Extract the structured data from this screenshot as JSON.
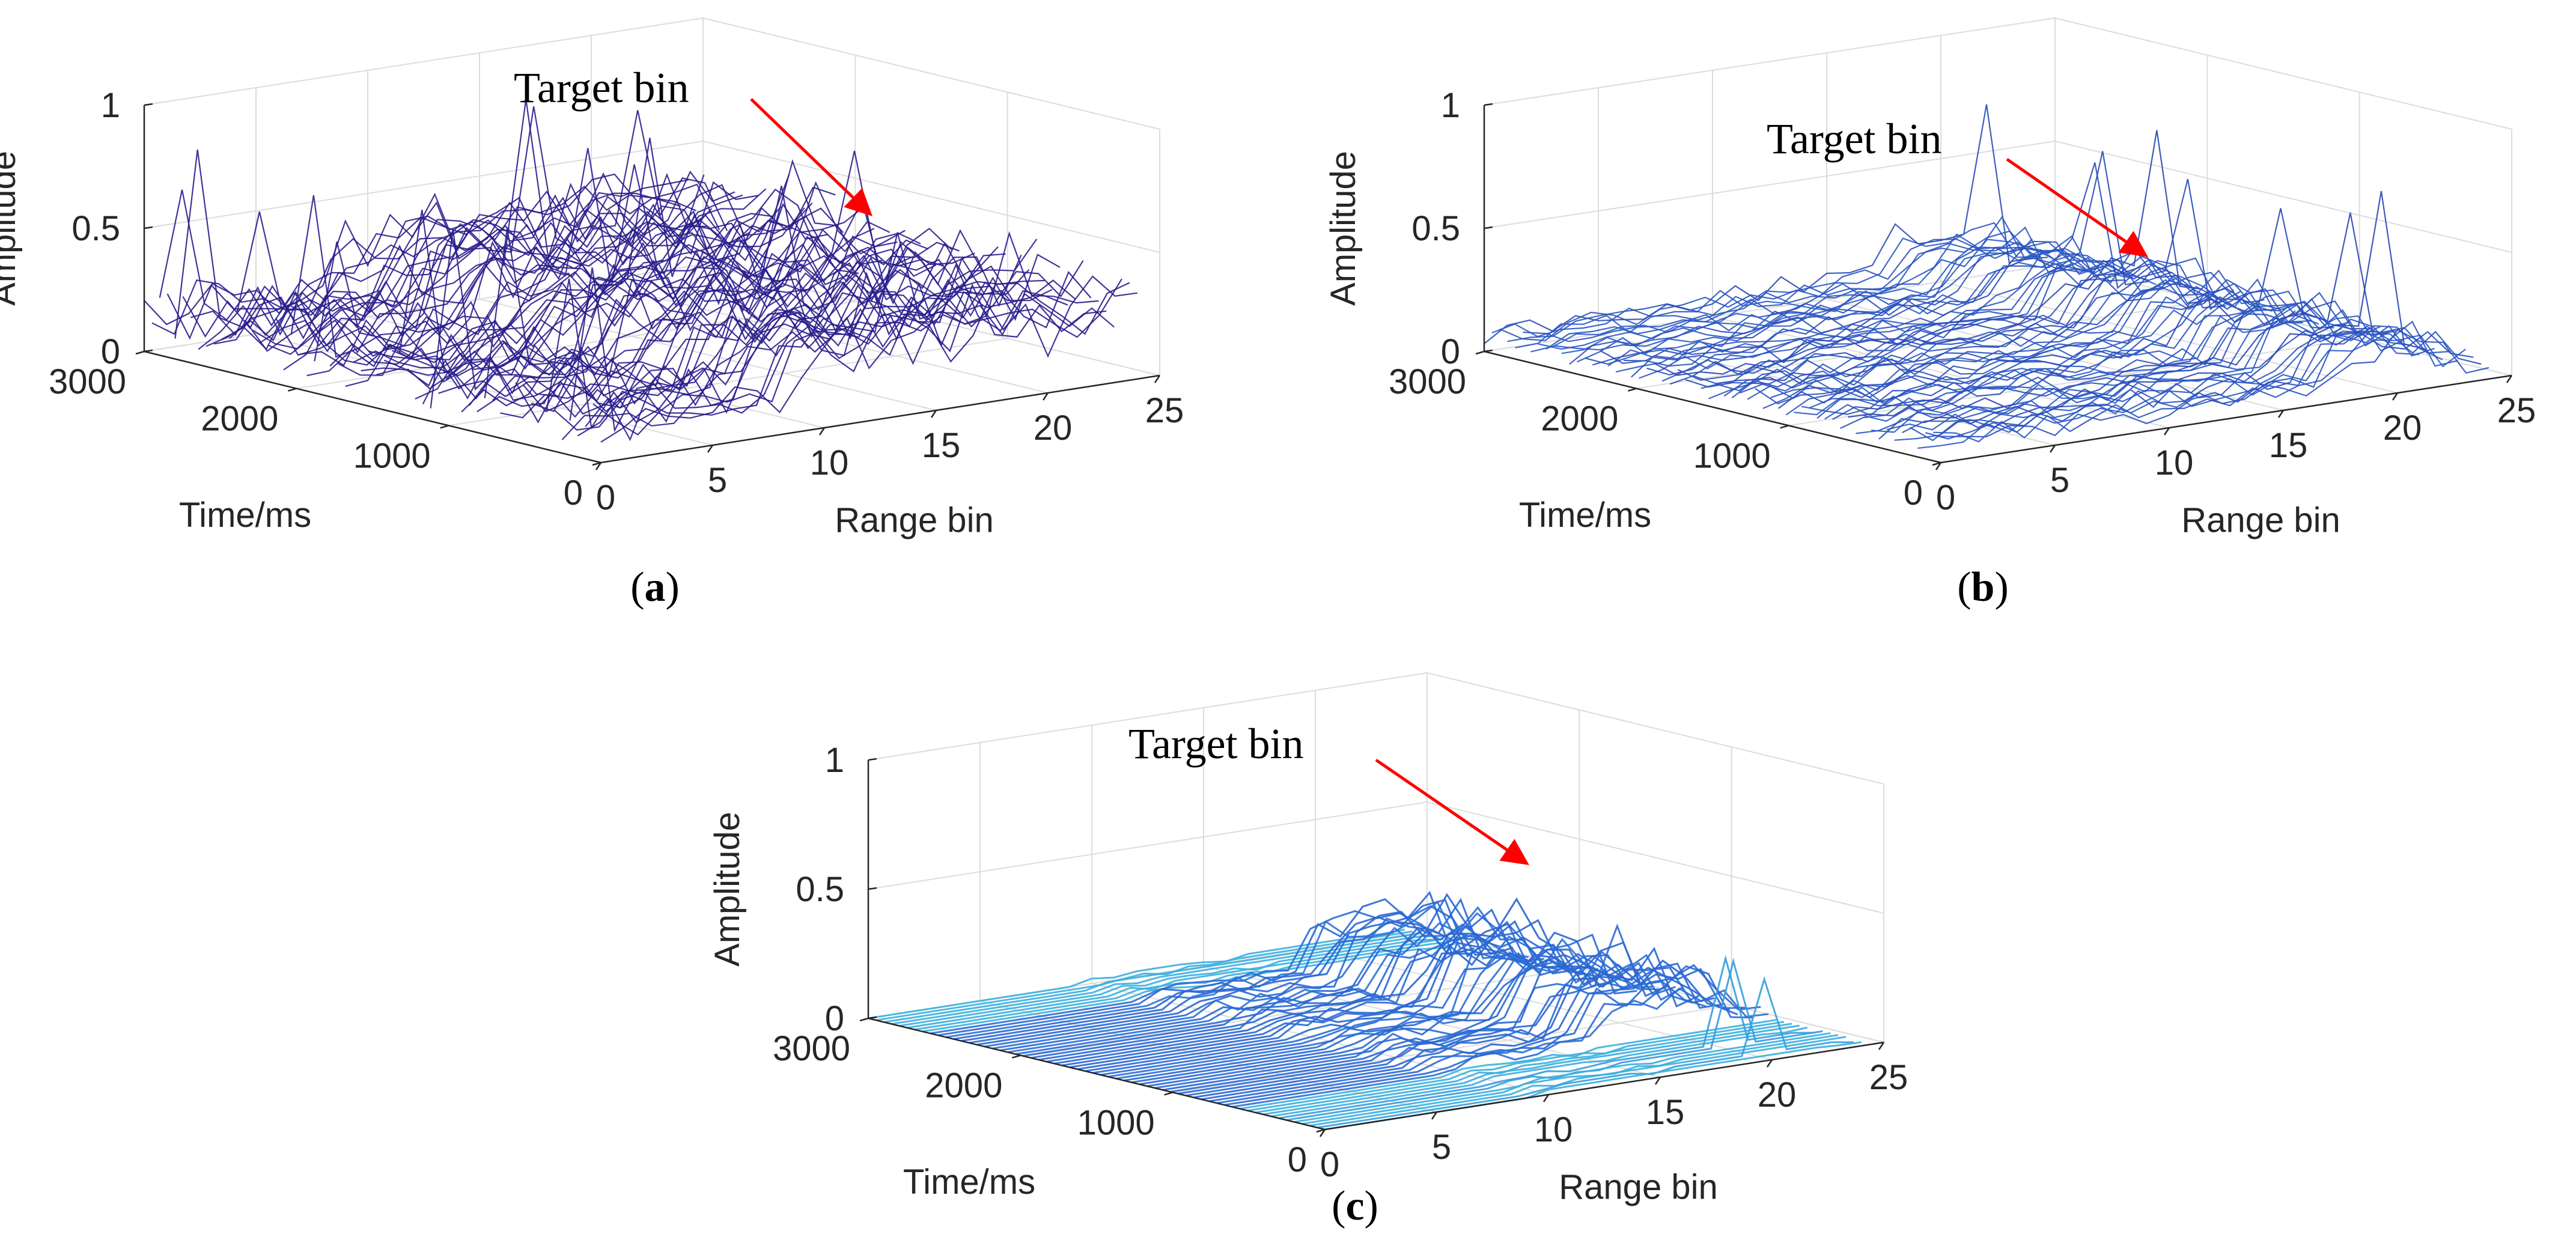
{
  "chart_data": [
    {
      "id": "a",
      "type": "3d-mesh",
      "caption_letter": "a",
      "xlabel": "Range bin",
      "ylabel": "Time/ms",
      "zlabel": "Amplitude",
      "xlim": [
        0,
        25
      ],
      "ylim": [
        0,
        3000
      ],
      "zlim": [
        0,
        1
      ],
      "xticks": [
        "0",
        "5",
        "10",
        "15",
        "20",
        "25"
      ],
      "yticks": [
        "0",
        "1000",
        "2000",
        "3000"
      ],
      "zticks": [
        "0",
        "0.5",
        "1"
      ],
      "annotation": "Target bin",
      "surface_level": "noisy",
      "peaks": [
        {
          "range_bin": 1,
          "amplitude": 0.85
        },
        {
          "range_bin": 15,
          "amplitude": 0.9
        },
        {
          "range_bin": 20,
          "amplitude": 0.8
        }
      ]
    },
    {
      "id": "b",
      "type": "3d-mesh",
      "caption_letter": "b",
      "xlabel": "Range bin",
      "ylabel": "Time/ms",
      "zlabel": "Amplitude",
      "xlim": [
        0,
        25
      ],
      "ylim": [
        0,
        3000
      ],
      "zlim": [
        0,
        1
      ],
      "xticks": [
        "0",
        "5",
        "10",
        "15",
        "20",
        "25"
      ],
      "yticks": [
        "0",
        "1000",
        "2000",
        "3000"
      ],
      "zticks": [
        "0",
        "0.5",
        "1"
      ],
      "annotation": "Target bin",
      "surface_level": "moderate",
      "peaks": [
        {
          "range_bin": 22,
          "amplitude": 0.8
        }
      ]
    },
    {
      "id": "c",
      "type": "3d-mesh",
      "caption_letter": "c",
      "xlabel": "Range bin",
      "ylabel": "Time/ms",
      "zlabel": "Amplitude",
      "xlim": [
        0,
        25
      ],
      "ylim": [
        0,
        3000
      ],
      "zlim": [
        0,
        1
      ],
      "xticks": [
        "0",
        "5",
        "10",
        "15",
        "20",
        "25"
      ],
      "yticks": [
        "0",
        "1000",
        "2000",
        "3000"
      ],
      "zticks": [
        "0",
        "0.5",
        "1"
      ],
      "annotation": "Target bin",
      "surface_level": "clean",
      "peaks": [
        {
          "range_bin": 20,
          "amplitude": 0.4
        }
      ]
    }
  ],
  "colors": {
    "mesh_dark": "#2b1d8c",
    "mesh_mid": "#2a6ad6",
    "mesh_light": "#3fc0e0",
    "mesh_peak": "#f2e34a",
    "arrow": "#ff0000"
  }
}
